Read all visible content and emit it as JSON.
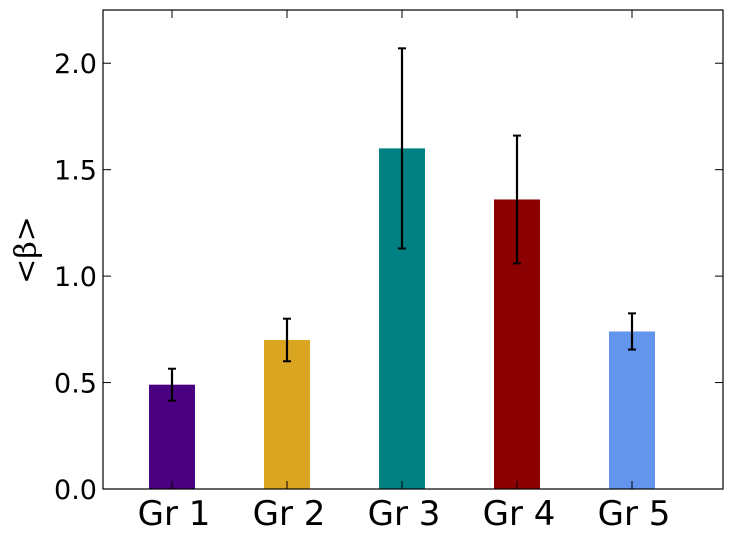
{
  "chart_data": {
    "type": "bar",
    "categories": [
      "Gr 1",
      "Gr 2",
      "Gr 3",
      "Gr 4",
      "Gr 5"
    ],
    "values": [
      0.49,
      0.7,
      1.6,
      1.36,
      0.74
    ],
    "errors": [
      0.075,
      0.1,
      0.47,
      0.3,
      0.085
    ],
    "colors": [
      "#4b0082",
      "#daa520",
      "#008080",
      "#8b0000",
      "#6495ed"
    ],
    "xlabel": "",
    "ylabel": "<β>",
    "ylim": [
      0.0,
      2.25
    ],
    "yticks": [
      0.0,
      0.5,
      1.0,
      1.5,
      2.0
    ],
    "ytick_labels": [
      "0.0",
      "0.5",
      "1.0",
      "1.5",
      "2.0"
    ],
    "grid": false,
    "legend": "none"
  }
}
